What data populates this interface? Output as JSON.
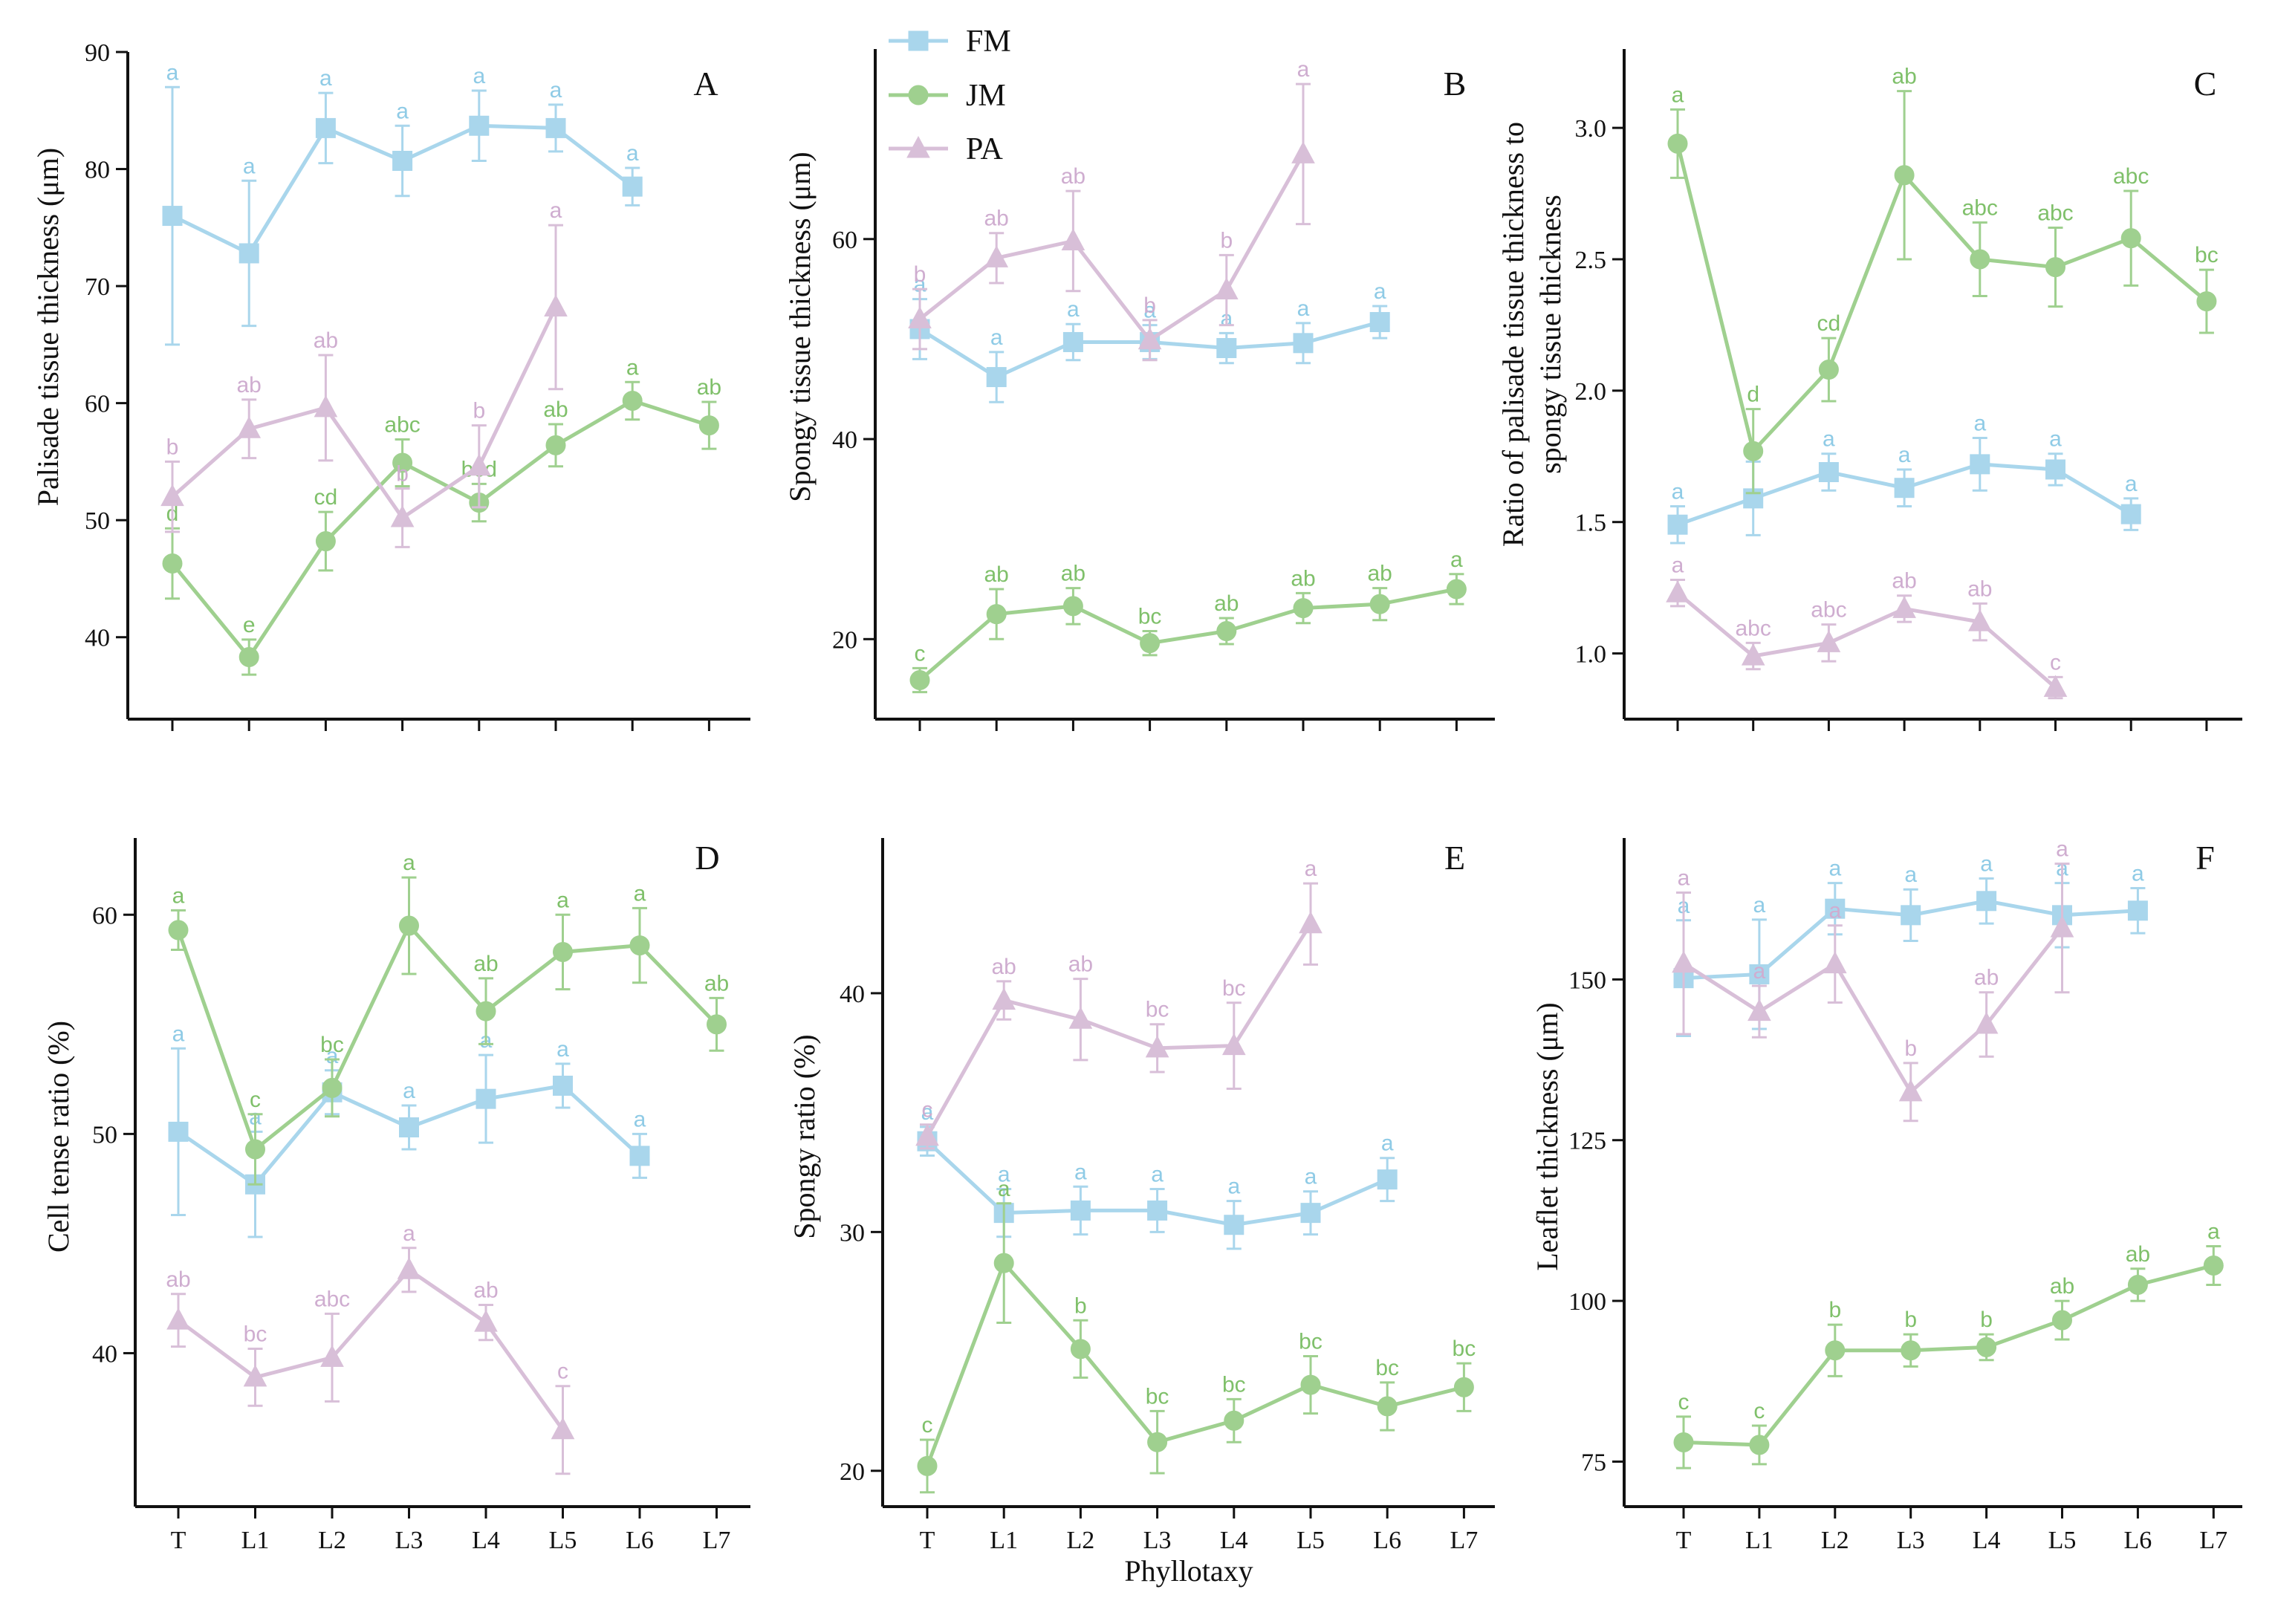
{
  "figure": {
    "shared_xlabel": "Phyllotaxy",
    "categories": [
      "T",
      "L1",
      "L2",
      "L3",
      "L4",
      "L5",
      "L6",
      "L7"
    ],
    "legend": [
      {
        "name": "FM",
        "color": "#a9d6ec",
        "marker": "square"
      },
      {
        "name": "JM",
        "color": "#9fd08f",
        "marker": "circle"
      },
      {
        "name": "PA",
        "color": "#d8bfd8",
        "marker": "triangle"
      }
    ],
    "colors": {
      "FM": "#a9d6ec",
      "JM": "#9fd08f",
      "PA": "#d8bfd8",
      "FM_label": "#8fcbe6",
      "JM_label": "#7fc06a",
      "PA_label": "#cfadd0"
    }
  },
  "chart_data": [
    {
      "type": "line",
      "panel": "A",
      "ylabel": "Palisade tissue thickness (μm)",
      "ylim": [
        33,
        90
      ],
      "yticks": [
        40,
        50,
        60,
        70,
        80,
        90
      ],
      "series": [
        {
          "name": "FM",
          "values": [
            76,
            72.8,
            83.5,
            80.7,
            83.7,
            83.5,
            78.5,
            null
          ],
          "err": [
            11,
            6.2,
            3,
            3,
            3,
            2,
            1.6,
            null
          ],
          "labels": [
            "a",
            "a",
            "a",
            "a",
            "a",
            "a",
            "a",
            ""
          ]
        },
        {
          "name": "JM",
          "values": [
            46.3,
            38.3,
            48.2,
            54.9,
            51.5,
            56.4,
            60.2,
            58.1
          ],
          "err": [
            3,
            1.5,
            2.5,
            2,
            1.6,
            1.8,
            1.6,
            2
          ],
          "labels": [
            "d",
            "e",
            "cd",
            "abc",
            "bcd",
            "ab",
            "a",
            "ab"
          ]
        },
        {
          "name": "PA",
          "values": [
            52,
            57.8,
            59.6,
            50.2,
            54.6,
            68.2,
            null,
            null
          ],
          "err": [
            3,
            2.5,
            4.5,
            2.5,
            3.5,
            7,
            null,
            null
          ],
          "labels": [
            "b",
            "ab",
            "ab",
            "b",
            "b",
            "a",
            "",
            ""
          ]
        }
      ]
    },
    {
      "type": "line",
      "panel": "B",
      "ylabel": "Spongy tissue thickness (μm)",
      "ylim": [
        12,
        79
      ],
      "yticks": [
        20,
        40,
        60
      ],
      "series": [
        {
          "name": "FM",
          "values": [
            51,
            46.2,
            49.7,
            49.7,
            49.1,
            49.6,
            51.7,
            null
          ],
          "err": [
            3,
            2.5,
            1.8,
            1.7,
            1.5,
            2,
            1.6,
            null
          ],
          "labels": [
            "a",
            "a",
            "a",
            "a",
            "a",
            "a",
            "a",
            ""
          ]
        },
        {
          "name": "JM",
          "values": [
            15.9,
            22.5,
            23.3,
            19.6,
            20.8,
            23.1,
            23.5,
            25
          ],
          "err": [
            1.2,
            2.5,
            1.8,
            1.2,
            1.3,
            1.5,
            1.6,
            1.5
          ],
          "labels": [
            "c",
            "ab",
            "ab",
            "bc",
            "ab",
            "ab",
            "ab",
            "a"
          ]
        },
        {
          "name": "PA",
          "values": [
            52,
            58.1,
            59.8,
            49.9,
            54.9,
            68.5,
            null,
            null
          ],
          "err": [
            3,
            2.5,
            5,
            2,
            3.5,
            7,
            null,
            null
          ],
          "labels": [
            "b",
            "ab",
            "ab",
            "b",
            "b",
            "a",
            "",
            ""
          ]
        }
      ]
    },
    {
      "type": "line",
      "panel": "C",
      "ylabel": "Ratio of palisade tissue thickness to spongy tissue thickness",
      "ylabel_line1": "Ratio of palisade tissue thickness to",
      "ylabel_line2": "spongy tissue thickness",
      "ylim": [
        0.75,
        3.3
      ],
      "yticks": [
        1.0,
        1.5,
        2.0,
        2.5,
        3.0
      ],
      "series": [
        {
          "name": "FM",
          "values": [
            1.49,
            1.59,
            1.69,
            1.63,
            1.72,
            1.7,
            1.53,
            null
          ],
          "err": [
            0.07,
            0.14,
            0.07,
            0.07,
            0.1,
            0.06,
            0.06,
            null
          ],
          "labels": [
            "a",
            "a",
            "a",
            "a",
            "a",
            "a",
            "a",
            ""
          ]
        },
        {
          "name": "JM",
          "values": [
            2.94,
            1.77,
            2.08,
            2.82,
            2.5,
            2.47,
            2.58,
            2.34
          ],
          "err": [
            0.13,
            0.16,
            0.12,
            0.32,
            0.14,
            0.15,
            0.18,
            0.12
          ],
          "labels": [
            "a",
            "d",
            "cd",
            "ab",
            "abc",
            "abc",
            "abc",
            "bc"
          ]
        },
        {
          "name": "PA",
          "values": [
            1.23,
            0.99,
            1.04,
            1.17,
            1.12,
            0.87,
            null,
            null
          ],
          "err": [
            0.05,
            0.05,
            0.07,
            0.05,
            0.07,
            0.04,
            null,
            null
          ],
          "labels": [
            "a",
            "abc",
            "abc",
            "ab",
            "ab",
            "c",
            "",
            ""
          ]
        }
      ]
    },
    {
      "type": "line",
      "panel": "D",
      "ylabel": "Cell tense ratio (%)",
      "ylim": [
        33,
        63.5
      ],
      "yticks": [
        40,
        50,
        60
      ],
      "series": [
        {
          "name": "FM",
          "values": [
            50.1,
            47.7,
            51.9,
            50.3,
            51.6,
            52.2,
            49,
            null
          ],
          "err": [
            3.8,
            2.4,
            1,
            1,
            2,
            1,
            1,
            null
          ],
          "labels": [
            "a",
            "a",
            "a",
            "a",
            "a",
            "a",
            "a",
            ""
          ]
        },
        {
          "name": "JM",
          "values": [
            59.3,
            49.3,
            52.1,
            59.5,
            55.6,
            58.3,
            58.6,
            55
          ],
          "err": [
            0.9,
            1.6,
            1.3,
            2.2,
            1.5,
            1.7,
            1.7,
            1.2
          ],
          "labels": [
            "a",
            "c",
            "bc",
            "a",
            "ab",
            "a",
            "a",
            "ab"
          ]
        },
        {
          "name": "PA",
          "values": [
            41.5,
            38.9,
            39.8,
            43.8,
            41.4,
            36.5,
            null,
            null
          ],
          "err": [
            1.2,
            1.3,
            2,
            1,
            0.8,
            2,
            null,
            null
          ],
          "labels": [
            "ab",
            "bc",
            "abc",
            "a",
            "ab",
            "c",
            "",
            ""
          ]
        }
      ]
    },
    {
      "type": "line",
      "panel": "E",
      "ylabel": "Spongy ratio (%)",
      "ylim": [
        18.5,
        46.5
      ],
      "yticks": [
        20,
        30,
        40
      ],
      "series": [
        {
          "name": "FM",
          "values": [
            33.8,
            30.8,
            30.9,
            30.9,
            30.3,
            30.8,
            32.2,
            null
          ],
          "err": [
            0.6,
            1,
            1,
            0.9,
            1,
            0.9,
            0.9,
            null
          ],
          "labels": [
            "a",
            "a",
            "a",
            "a",
            "a",
            "a",
            "a",
            ""
          ]
        },
        {
          "name": "JM",
          "values": [
            20.2,
            28.7,
            25.1,
            21.2,
            22.1,
            23.6,
            22.7,
            23.5
          ],
          "err": [
            1.1,
            2.5,
            1.2,
            1.3,
            0.9,
            1.2,
            1,
            1
          ],
          "labels": [
            "c",
            "a",
            "b",
            "bc",
            "bc",
            "bc",
            "bc",
            "bc"
          ]
        },
        {
          "name": "PA",
          "values": [
            34,
            39.7,
            38.9,
            37.7,
            37.8,
            42.9,
            null,
            null
          ],
          "err": [
            0.5,
            0.8,
            1.7,
            1,
            1.8,
            1.7,
            null,
            null
          ],
          "labels": [
            "c",
            "ab",
            "ab",
            "bc",
            "bc",
            "a",
            "",
            ""
          ]
        }
      ]
    },
    {
      "type": "line",
      "panel": "F",
      "ylabel": "Leaflet thickness (μm)",
      "ylim": [
        68,
        172
      ],
      "yticks": [
        75,
        100,
        125,
        150
      ],
      "series": [
        {
          "name": "FM",
          "values": [
            150.2,
            150.8,
            161,
            160,
            162.2,
            160,
            160.7,
            null
          ],
          "err": [
            9,
            8.5,
            4,
            4,
            3.5,
            5,
            3.5,
            null
          ],
          "labels": [
            "a",
            "a",
            "a",
            "a",
            "a",
            "a",
            "a",
            ""
          ]
        },
        {
          "name": "JM",
          "values": [
            78,
            77.6,
            92.3,
            92.3,
            92.8,
            97,
            102.5,
            105.5
          ],
          "err": [
            4,
            3,
            4,
            2.5,
            2,
            3,
            2.5,
            3
          ],
          "labels": [
            "c",
            "c",
            "b",
            "b",
            "b",
            "ab",
            "ab",
            "a"
          ]
        },
        {
          "name": "PA",
          "values": [
            152.5,
            145,
            152.4,
            132.5,
            143,
            158,
            null,
            null
          ],
          "err": [
            11,
            4,
            6,
            4.5,
            5,
            10,
            null,
            null
          ],
          "labels": [
            "a",
            "a",
            "a",
            "b",
            "ab",
            "a",
            "",
            ""
          ]
        }
      ]
    }
  ]
}
